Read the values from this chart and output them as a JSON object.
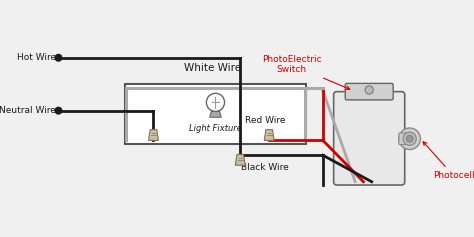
{
  "bg_color": "#f0f0f0",
  "colors": {
    "black": "#1a1a1a",
    "red": "#cc0000",
    "white_wire": "#aaaaaa",
    "box_edge": "#555555",
    "switch_body": "#e0e0e0",
    "connector": "#c8c0a0",
    "label_red": "#cc0000"
  },
  "labels": {
    "white_wire": "White Wire",
    "neutral_wire": "Neutral Wire",
    "hot_wire": "Hot Wire",
    "light_fixture": "Light Fixture",
    "red_wire": "Red Wire",
    "black_wire": "Black Wire",
    "photoelectric": "PhotoElectric\nSwitch",
    "photocell": "Photocell"
  }
}
